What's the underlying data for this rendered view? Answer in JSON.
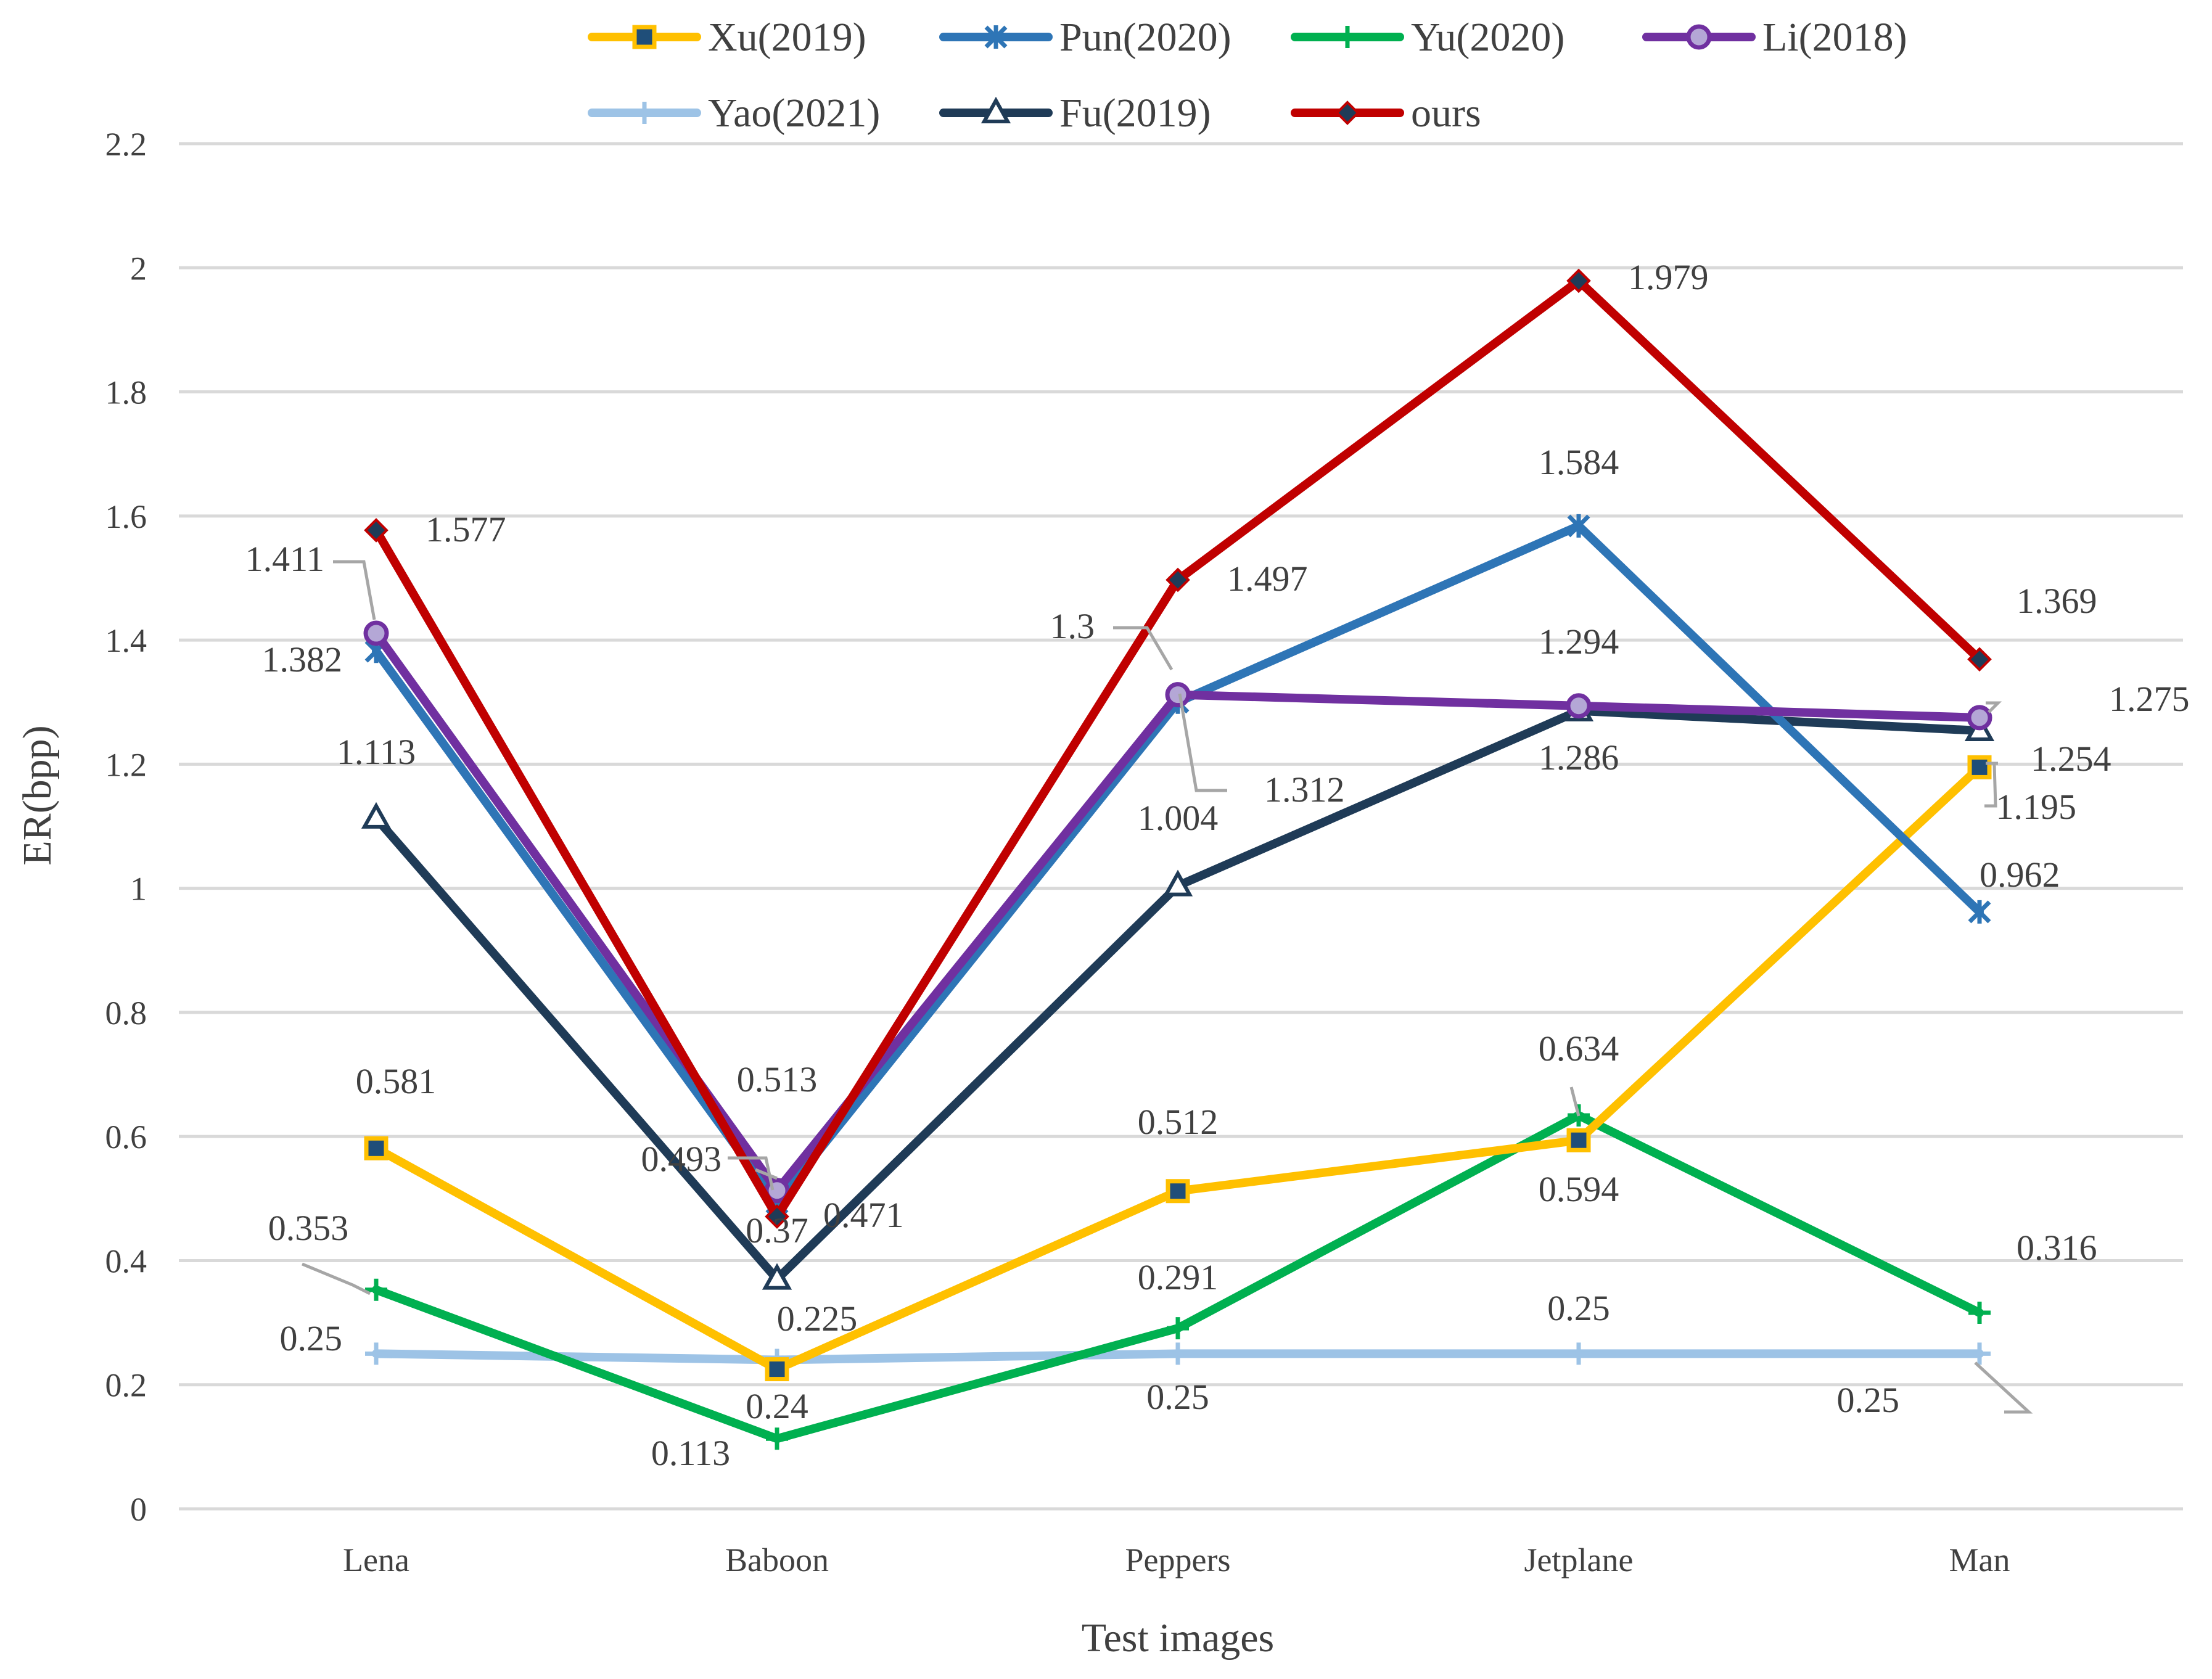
{
  "chart_data": {
    "type": "line",
    "title": "",
    "xlabel": "Test images",
    "ylabel": "ER(bpp)",
    "categories": [
      "Lena",
      "Baboon",
      "Peppers",
      "Jetplane",
      "Man"
    ],
    "ylim": [
      0,
      2.2
    ],
    "yticks": [
      0,
      0.2,
      0.4,
      0.6,
      0.8,
      1,
      1.2,
      1.4,
      1.6,
      1.8,
      2,
      2.2
    ],
    "ytick_labels": [
      "0",
      "0.2",
      "0.4",
      "0.6",
      "0.8",
      "1",
      "1.2",
      "1.4",
      "1.6",
      "1.8",
      "2",
      "2.2"
    ],
    "grid": true,
    "legend_position": "top",
    "series": [
      {
        "name": "Xu(2019)",
        "key": "xu",
        "color": "#ffc000",
        "marker_fill": "#1f4e79",
        "marker": "square",
        "values": [
          0.581,
          0.225,
          0.512,
          0.594,
          1.195
        ],
        "labels": [
          "0.581",
          "0.225",
          "0.512",
          "0.594",
          "1.195"
        ]
      },
      {
        "name": "Pun(2020)",
        "key": "pun",
        "color": "#2e75b6",
        "marker_fill": "#2e75b6",
        "marker": "star",
        "values": [
          1.382,
          0.493,
          1.3,
          1.584,
          0.962
        ],
        "labels": [
          "1.382",
          "0.493",
          "1.3",
          "1.584",
          "0.962"
        ]
      },
      {
        "name": "Yu(2020)",
        "key": "yu",
        "color": "#00b050",
        "marker_fill": "#00b050",
        "marker": "plus",
        "values": [
          0.353,
          0.113,
          0.291,
          0.634,
          0.316
        ],
        "labels": [
          "0.353",
          "0.113",
          "0.291",
          "0.634",
          "0.316"
        ]
      },
      {
        "name": "Li(2018)",
        "key": "li",
        "color": "#7030a0",
        "marker_fill": "#b4a7d6",
        "marker": "circle",
        "values": [
          1.411,
          0.513,
          1.312,
          1.294,
          1.275
        ],
        "labels": [
          "1.411",
          "0.513",
          "1.312",
          "1.294",
          "1.275"
        ]
      },
      {
        "name": "Yao(2021)",
        "key": "yao",
        "color": "#9dc3e6",
        "marker_fill": "#9dc3e6",
        "marker": "plus",
        "values": [
          0.25,
          0.24,
          0.25,
          0.25,
          0.25
        ],
        "labels": [
          "0.25",
          "0.24",
          "0.25",
          "0.25",
          "0.25"
        ]
      },
      {
        "name": "Fu(2019)",
        "key": "fu",
        "color": "#1f3b57",
        "marker_fill": "#ffffff",
        "marker": "triangle",
        "values": [
          1.113,
          0.37,
          1.004,
          1.286,
          1.254
        ],
        "labels": [
          "1.113",
          "0.37",
          "1.004",
          "1.286",
          "1.254"
        ]
      },
      {
        "name": "ours",
        "key": "ours",
        "color": "#c00000",
        "marker_fill": "#1f3b57",
        "marker": "diamond",
        "values": [
          1.577,
          0.471,
          1.497,
          1.979,
          1.369
        ],
        "labels": [
          "1.577",
          "0.471",
          "1.497",
          "1.979",
          "1.369"
        ]
      }
    ]
  }
}
